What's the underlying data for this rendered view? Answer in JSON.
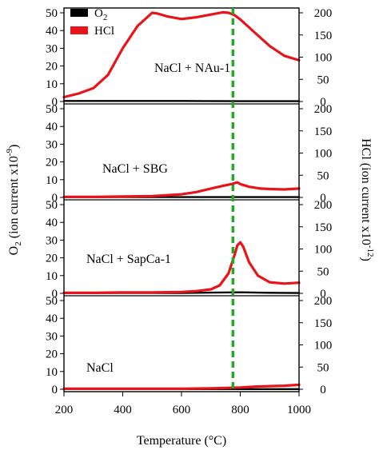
{
  "chart_data": {
    "type": "line",
    "xlabel": "Temperature (°C)",
    "xlim": [
      200,
      1000
    ],
    "x_ticks": [
      200,
      400,
      600,
      800,
      1000
    ],
    "ylabel_left": {
      "main": "O",
      "sub": "2",
      "rest": " (ion current x10",
      "sup": "-9",
      "end": ")"
    },
    "ylabel_right": {
      "main": "HCl (ion current x10",
      "sup": "-12",
      "end": ")"
    },
    "left_ylim": [
      0,
      50
    ],
    "left_ticks": [
      0,
      10,
      20,
      30,
      40,
      50
    ],
    "right_ylim": [
      0,
      200
    ],
    "right_ticks": [
      0,
      50,
      100,
      150,
      200
    ],
    "reference_line": {
      "x": 775,
      "color": "#22aa22",
      "style": "dashed"
    },
    "legend": [
      {
        "name": "O",
        "sub": "2",
        "color": "#000000"
      },
      {
        "name": "HCl",
        "sub": "",
        "color": "#e8141b"
      }
    ],
    "panels": [
      {
        "label": "NaCl + NAu-1",
        "series": [
          {
            "name": "O2",
            "axis": "left",
            "color": "#000000",
            "x": [
              200,
              400,
              600,
              800,
              1000
            ],
            "y": [
              0.3,
              0.3,
              0.3,
              0.2,
              0.2
            ]
          },
          {
            "name": "HCl",
            "axis": "right",
            "color": "#e8141b",
            "x": [
              200,
              250,
              300,
              350,
              400,
              450,
              500,
              520,
              550,
              600,
              650,
              700,
              740,
              760,
              780,
              800,
              850,
              900,
              950,
              1000
            ],
            "y": [
              10,
              18,
              30,
              60,
              120,
              170,
              200,
              198,
              192,
              186,
              190,
              196,
              201,
              200,
              195,
              185,
              155,
              125,
              103,
              93
            ]
          }
        ]
      },
      {
        "label": "NaCl + SBG",
        "series": [
          {
            "name": "O2",
            "axis": "left",
            "color": "#000000",
            "x": [
              200,
              400,
              600,
              800,
              1000
            ],
            "y": [
              0.2,
              0.2,
              0.2,
              0.2,
              0.2
            ]
          },
          {
            "name": "HCl",
            "axis": "right",
            "color": "#e8141b",
            "x": [
              200,
              300,
              400,
              500,
              600,
              650,
              700,
              740,
              770,
              790,
              800,
              830,
              870,
              900,
              950,
              1000
            ],
            "y": [
              1,
              1,
              2,
              3,
              7,
              12,
              20,
              26,
              30,
              34,
              30,
              24,
              20,
              19,
              18,
              20
            ]
          }
        ]
      },
      {
        "label": "NaCl + SapCa-1",
        "series": [
          {
            "name": "O2",
            "axis": "left",
            "color": "#000000",
            "x": [
              200,
              400,
              600,
              700,
              800,
              900,
              1000
            ],
            "y": [
              0.2,
              0.2,
              0.2,
              0.4,
              0.6,
              0.3,
              0.2
            ]
          },
          {
            "name": "HCl",
            "axis": "right",
            "color": "#e8141b",
            "x": [
              200,
              300,
              400,
              500,
              600,
              650,
              700,
              730,
              760,
              780,
              790,
              800,
              810,
              830,
              860,
              900,
              950,
              1000
            ],
            "y": [
              1,
              1,
              2,
              2,
              3,
              5,
              9,
              18,
              45,
              85,
              108,
              115,
              105,
              70,
              40,
              25,
              22,
              24
            ]
          }
        ]
      },
      {
        "label": "NaCl",
        "series": [
          {
            "name": "O2",
            "axis": "left",
            "color": "#000000",
            "x": [
              200,
              400,
              600,
              800,
              1000
            ],
            "y": [
              0.1,
              0.1,
              0.1,
              0.1,
              0.1
            ]
          },
          {
            "name": "HCl",
            "axis": "right",
            "color": "#e8141b",
            "x": [
              200,
              300,
              400,
              500,
              600,
              700,
              750,
              800,
              850,
              900,
              950,
              1000
            ],
            "y": [
              1,
              1,
              1,
              1,
              1,
              2,
              3,
              4,
              6,
              7,
              8,
              10
            ]
          }
        ]
      }
    ]
  }
}
